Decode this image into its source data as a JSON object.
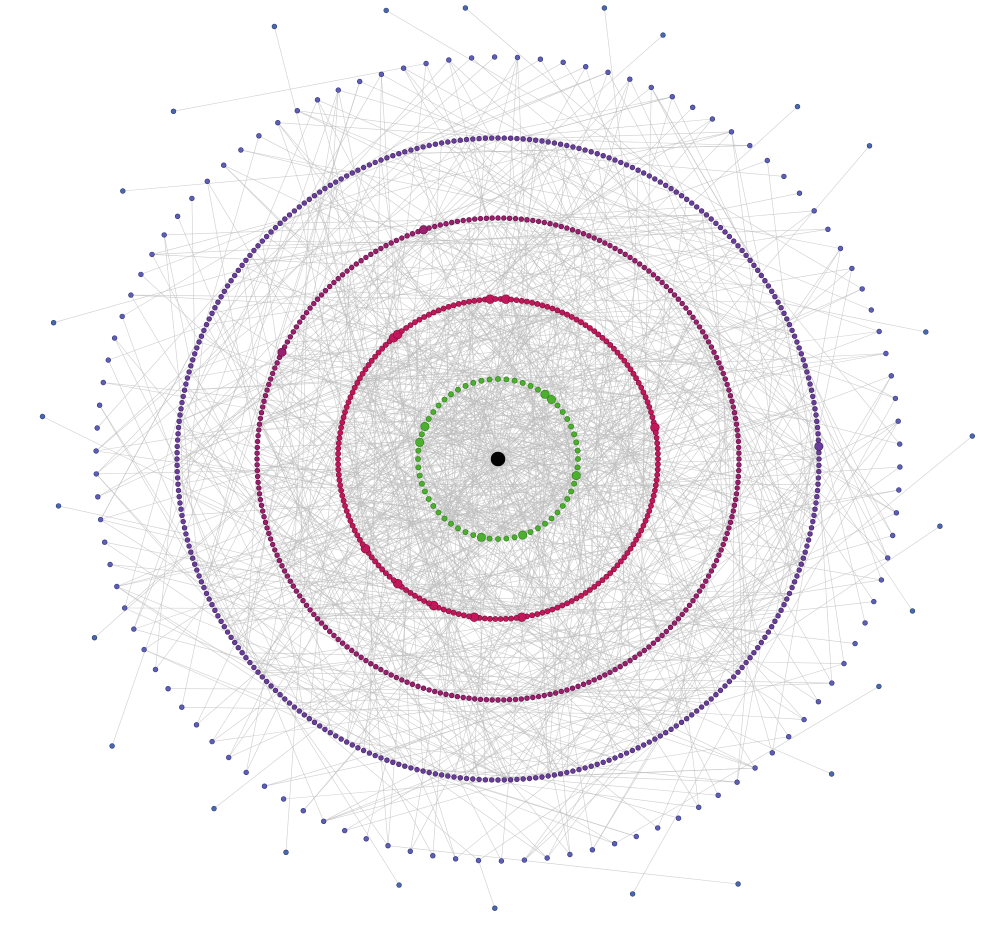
{
  "diagram": {
    "type": "radial-network-graph",
    "background": "#ffffff",
    "edge_color": "#bdbdbd",
    "rings": [
      {
        "name": "center",
        "node_count": 1,
        "fill": "#000000",
        "stroke": "#000000"
      },
      {
        "name": "ring-1",
        "node_count": 60,
        "fill": "#4caf2e",
        "stroke": "#2e7d1a",
        "large_nodes": 8
      },
      {
        "name": "ring-2",
        "node_count": 190,
        "fill": "#c2185b",
        "stroke": "#7a0f39",
        "large_nodes": 10
      },
      {
        "name": "ring-3",
        "node_count": 260,
        "fill": "#9c1f6e",
        "stroke": "#5a0e40",
        "large_nodes": 2
      },
      {
        "name": "ring-4",
        "node_count": 320,
        "fill": "#6a3d9a",
        "stroke": "#3d2260",
        "large_nodes": 1
      },
      {
        "name": "ring-5",
        "node_count": 110,
        "fill": "#5c5fb5",
        "stroke": "#33357a",
        "large_nodes": 0
      }
    ],
    "outliers": {
      "node_count": 26,
      "fill": "#4a68b0",
      "stroke": "#2a3d70"
    }
  }
}
